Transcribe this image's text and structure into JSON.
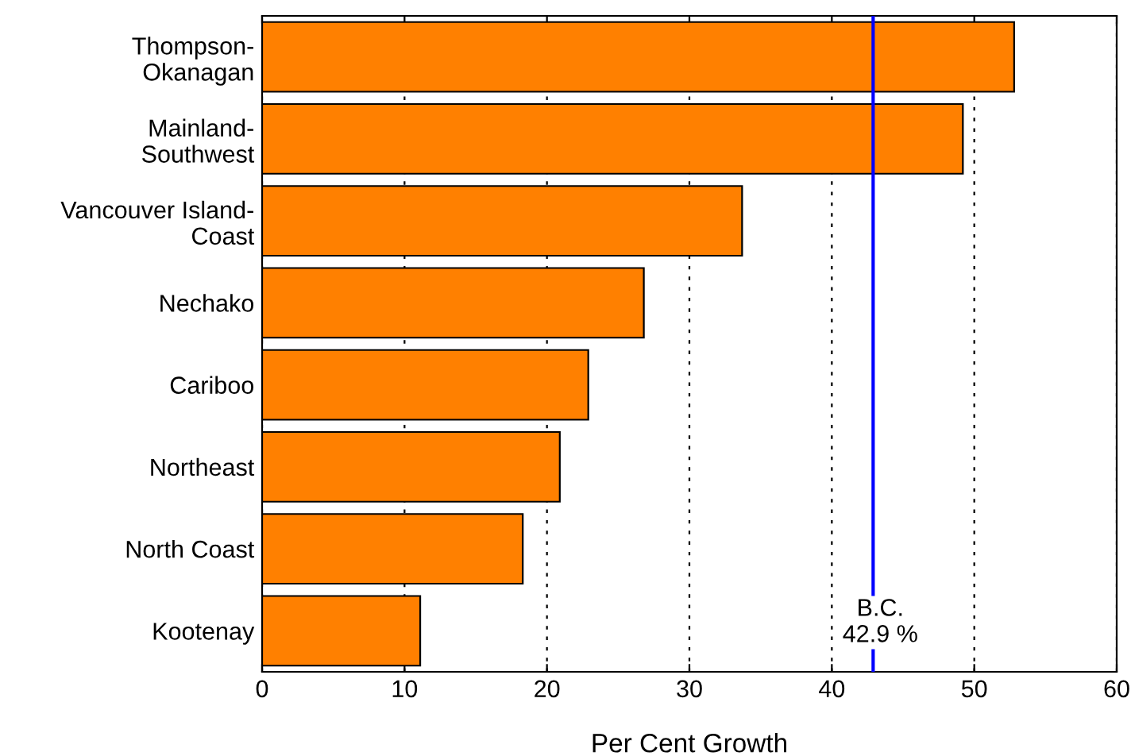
{
  "chart_data": {
    "type": "bar",
    "orientation": "horizontal",
    "xlabel": "Per Cent Growth",
    "categories": [
      "Thompson-\nOkanagan",
      "Mainland-\nSouthwest",
      "Vancouver Island-\nCoast",
      "Nechako",
      "Cariboo",
      "Northeast",
      "North Coast",
      "Kootenay"
    ],
    "values": [
      52.8,
      49.2,
      33.7,
      26.8,
      22.9,
      20.9,
      18.3,
      11.1
    ],
    "color": "#ff8000",
    "xlim": [
      0,
      60
    ],
    "xticks": [
      0,
      10,
      20,
      30,
      40,
      50,
      60
    ],
    "grid": "x",
    "ref_lines": [
      {
        "axis": "x",
        "value": 42.9,
        "label": "B.C.\n42.9 %",
        "color": "#0000ff"
      }
    ]
  }
}
